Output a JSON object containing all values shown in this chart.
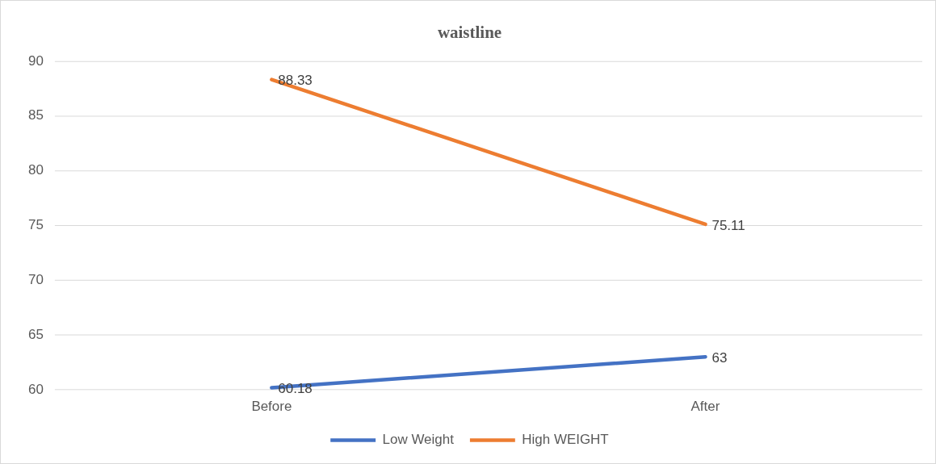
{
  "chart_data": {
    "type": "line",
    "title": "waistline",
    "categories": [
      "Before",
      "After"
    ],
    "series": [
      {
        "name": "Low Weight",
        "color": "#4472c4",
        "values": [
          60.18,
          63
        ]
      },
      {
        "name": "High WEIGHT",
        "color": "#ed7d31",
        "values": [
          88.33,
          75.11
        ]
      }
    ],
    "ylim": [
      60,
      90
    ],
    "yticks": [
      60,
      65,
      70,
      75,
      80,
      85,
      90
    ],
    "grid": "y",
    "legend": "bottom",
    "marker": "none",
    "line_style": "solid",
    "data_labels": true
  }
}
